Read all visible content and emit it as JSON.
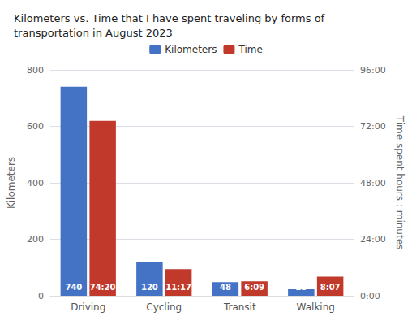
{
  "chart_data": {
    "type": "bar",
    "title": "Kilometers vs. Time that I have spent traveling by forms of transportation in August 2023",
    "categories": [
      "Driving",
      "Cycling",
      "Transit",
      "Walking"
    ],
    "series": [
      {
        "name": "Kilometers",
        "color": "#4472C4",
        "values": [
          740,
          120,
          48,
          23
        ]
      },
      {
        "name": "Time",
        "color": "#C0392B",
        "axis": "y2",
        "values": [
          4460,
          677,
          369,
          487
        ],
        "value_labels": [
          "74:20",
          "11:17",
          "6:09",
          "8:07"
        ]
      }
    ],
    "ylabel": "Kilometers",
    "y2label": "Time spent hours : minutes",
    "ylim": [
      0,
      800
    ],
    "yticks": [
      0,
      200,
      400,
      600,
      800
    ],
    "y2lim": [
      0,
      5760
    ],
    "y2ticks": [
      {
        "value": 0,
        "label": "0:00"
      },
      {
        "value": 1440,
        "label": "24:00"
      },
      {
        "value": 2880,
        "label": "48:00"
      },
      {
        "value": 4320,
        "label": "72:00"
      },
      {
        "value": 5760,
        "label": "96:00"
      }
    ],
    "data_labels": true,
    "grid": true,
    "legend": "top"
  }
}
